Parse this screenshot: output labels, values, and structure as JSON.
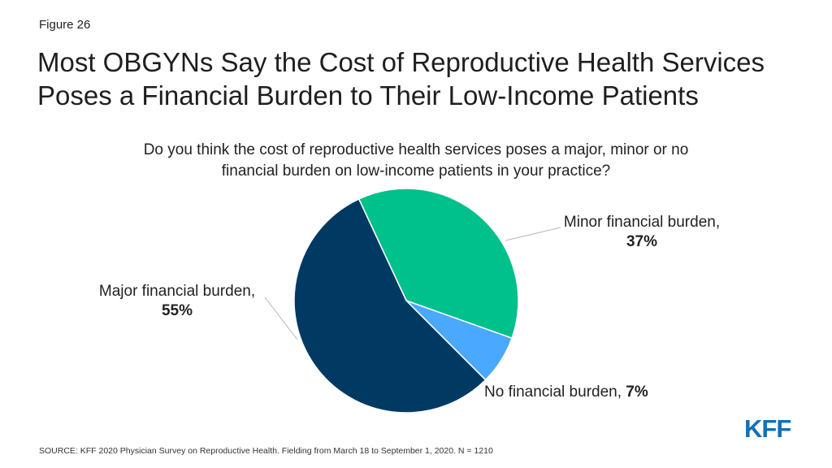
{
  "figure_label": "Figure 26",
  "title": "Most OBGYNs Say the Cost of Reproductive Health Services Poses a Financial Burden to Their Low-Income Patients",
  "question": "Do you think the cost of reproductive health services poses a major, minor or no financial burden on low-income patients in your practice?",
  "source": "SOURCE: KFF 2020 Physician Survey on Reproductive Health. Fielding from March 18 to September 1, 2020. N = 1210",
  "logo": "KFF",
  "chart_data": {
    "type": "pie",
    "title": "Do you think the cost of reproductive health services poses a major, minor or no financial burden on low-income patients in your practice?",
    "unit": "%",
    "slices": [
      {
        "label": "Minor financial burden,",
        "value": 37,
        "value_text": "37%",
        "color": "#00c08b"
      },
      {
        "label": "No financial burden,",
        "value": 7,
        "value_text": "7%",
        "color": "#4aa8ff"
      },
      {
        "label": "Major financial burden,",
        "value": 55,
        "value_text": "55%",
        "color": "#003a63"
      }
    ]
  }
}
